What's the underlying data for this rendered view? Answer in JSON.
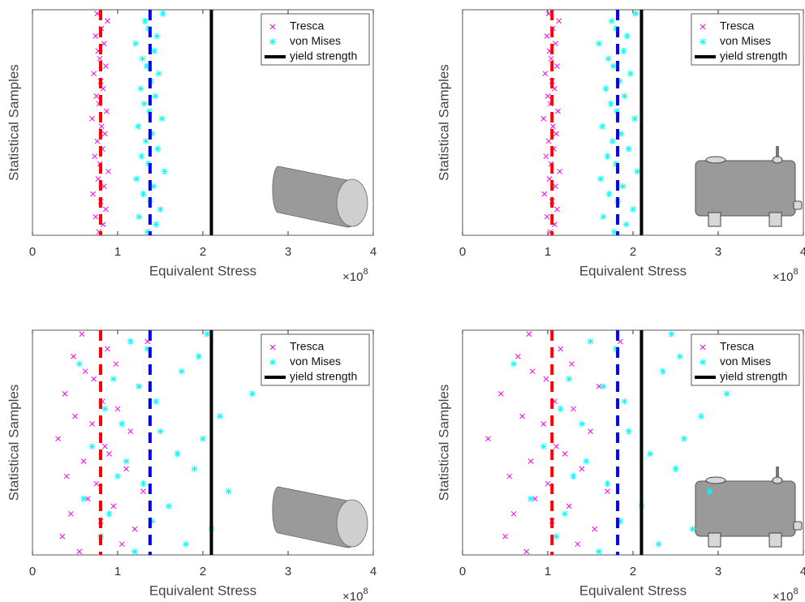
{
  "chart_data": [
    {
      "type": "scatter",
      "xlabel": "Equivalent Stress",
      "ylabel": "Statistical Samples",
      "x_multiplier": {
        "base": "×10",
        "exponent": "8"
      },
      "xlim": [
        0,
        4
      ],
      "xticks": [
        0,
        1,
        2,
        3,
        4
      ],
      "ylim": [
        0,
        1000
      ],
      "legend": "upper right",
      "series": [
        {
          "name": "Tresca",
          "color": "#ff00ff",
          "marker": "x",
          "x": [
            0.78,
            0.83,
            0.74,
            0.86,
            0.8,
            0.71,
            0.84,
            0.77,
            0.89,
            0.79,
            0.73,
            0.82,
            0.76,
            0.85,
            0.81,
            0.7,
            0.87,
            0.78,
            0.75,
            0.83,
            0.8,
            0.72,
            0.86,
            0.79,
            0.77,
            0.84,
            0.74,
            0.81,
            0.88,
            0.76
          ],
          "y": [
            15,
            48,
            82,
            115,
            150,
            183,
            217,
            250,
            283,
            317,
            350,
            383,
            417,
            450,
            483,
            517,
            550,
            583,
            617,
            650,
            683,
            717,
            750,
            783,
            817,
            850,
            883,
            917,
            950,
            983
          ]
        },
        {
          "name": "von Mises",
          "color": "#00ffff",
          "marker": "*",
          "x": [
            1.35,
            1.45,
            1.25,
            1.5,
            1.38,
            1.3,
            1.42,
            1.22,
            1.55,
            1.36,
            1.28,
            1.47,
            1.33,
            1.4,
            1.24,
            1.52,
            1.37,
            1.31,
            1.44,
            1.27,
            1.39,
            1.48,
            1.34,
            1.29,
            1.43,
            1.21,
            1.46,
            1.36,
            1.32,
            1.53
          ],
          "y": [
            15,
            48,
            82,
            115,
            150,
            183,
            217,
            250,
            283,
            317,
            350,
            383,
            417,
            450,
            483,
            517,
            550,
            583,
            617,
            650,
            683,
            717,
            750,
            783,
            817,
            850,
            883,
            917,
            950,
            983
          ]
        },
        {
          "name": "yield strength",
          "color": "#000000",
          "marker": "line",
          "value": 2.1
        }
      ],
      "mean_lines": [
        {
          "value": 0.8,
          "color": "#ff0000"
        },
        {
          "value": 1.38,
          "color": "#0000ff"
        }
      ],
      "icon": "cylinder"
    },
    {
      "type": "scatter",
      "xlabel": "Equivalent Stress",
      "ylabel": "Statistical Samples",
      "x_multiplier": {
        "base": "×10",
        "exponent": "8"
      },
      "xlim": [
        0,
        4
      ],
      "xticks": [
        0,
        1,
        2,
        3,
        4
      ],
      "ylim": [
        0,
        1000
      ],
      "legend": "upper right",
      "series": [
        {
          "name": "Tresca",
          "color": "#ff00ff",
          "marker": "x",
          "x": [
            1.03,
            1.08,
            0.99,
            1.11,
            1.05,
            0.96,
            1.09,
            1.02,
            1.14,
            1.04,
            0.98,
            1.07,
            1.01,
            1.1,
            1.06,
            0.95,
            1.12,
            1.03,
            1.0,
            1.08,
            1.05,
            0.97,
            1.11,
            1.04,
            1.02,
            1.09,
            0.99,
            1.06,
            1.13,
            1.01
          ],
          "y": [
            15,
            48,
            82,
            115,
            150,
            183,
            217,
            250,
            283,
            317,
            350,
            383,
            417,
            450,
            483,
            517,
            550,
            583,
            617,
            650,
            683,
            717,
            750,
            783,
            817,
            850,
            883,
            917,
            950,
            983
          ]
        },
        {
          "name": "von Mises",
          "color": "#00ffff",
          "marker": "*",
          "x": [
            1.78,
            1.92,
            1.65,
            2.0,
            1.82,
            1.72,
            1.88,
            1.62,
            2.05,
            1.8,
            1.7,
            1.95,
            1.76,
            1.86,
            1.64,
            2.02,
            1.81,
            1.74,
            1.9,
            1.68,
            1.84,
            1.97,
            1.77,
            1.71,
            1.89,
            1.6,
            1.93,
            1.8,
            1.75,
            2.03
          ],
          "y": [
            15,
            48,
            82,
            115,
            150,
            183,
            217,
            250,
            283,
            317,
            350,
            383,
            417,
            450,
            483,
            517,
            550,
            583,
            617,
            650,
            683,
            717,
            750,
            783,
            817,
            850,
            883,
            917,
            950,
            983
          ]
        },
        {
          "name": "yield strength",
          "color": "#000000",
          "marker": "line",
          "value": 2.1
        }
      ],
      "mean_lines": [
        {
          "value": 1.05,
          "color": "#ff0000"
        },
        {
          "value": 1.82,
          "color": "#0000ff"
        }
      ],
      "icon": "tank"
    },
    {
      "type": "scatter",
      "xlabel": "Equivalent Stress",
      "ylabel": "Statistical Samples",
      "x_multiplier": {
        "base": "×10",
        "exponent": "8"
      },
      "xlim": [
        0,
        4
      ],
      "xticks": [
        0,
        1,
        2,
        3,
        4
      ],
      "ylim": [
        0,
        1000
      ],
      "legend": "upper right",
      "series": [
        {
          "name": "Tresca",
          "color": "#ff00ff",
          "marker": "x",
          "x": [
            0.55,
            1.05,
            0.35,
            1.2,
            0.8,
            0.45,
            0.95,
            0.65,
            1.3,
            0.75,
            0.4,
            1.1,
            0.6,
            0.9,
            0.85,
            0.3,
            1.15,
            0.7,
            0.5,
            1.0,
            0.82,
            0.38,
            1.25,
            0.72,
            0.62,
            0.98,
            0.48,
            0.88,
            1.35,
            0.58
          ],
          "y": [
            15,
            48,
            82,
            115,
            150,
            183,
            217,
            250,
            283,
            317,
            350,
            383,
            417,
            450,
            483,
            517,
            550,
            583,
            617,
            650,
            683,
            717,
            750,
            783,
            817,
            850,
            883,
            917,
            950,
            983
          ]
        },
        {
          "name": "von Mises",
          "color": "#00ffff",
          "marker": "*",
          "x": [
            1.2,
            1.8,
            0.8,
            2.1,
            1.4,
            0.9,
            1.6,
            0.6,
            2.3,
            1.3,
            1.0,
            1.9,
            1.1,
            1.7,
            0.7,
            2.0,
            1.5,
            1.05,
            2.2,
            0.85,
            1.45,
            2.58,
            1.25,
            0.95,
            1.75,
            0.55,
            1.95,
            1.35,
            1.15,
            2.05
          ],
          "y": [
            15,
            48,
            82,
            115,
            150,
            183,
            217,
            250,
            283,
            317,
            350,
            383,
            417,
            450,
            483,
            517,
            550,
            583,
            617,
            650,
            683,
            717,
            750,
            783,
            817,
            850,
            883,
            917,
            950,
            983
          ]
        },
        {
          "name": "yield strength",
          "color": "#000000",
          "marker": "line",
          "value": 2.1
        }
      ],
      "mean_lines": [
        {
          "value": 0.8,
          "color": "#ff0000"
        },
        {
          "value": 1.38,
          "color": "#0000ff"
        }
      ],
      "icon": "cylinder"
    },
    {
      "type": "scatter",
      "xlabel": "Equivalent Stress",
      "ylabel": "Statistical Samples",
      "x_multiplier": {
        "base": "×10",
        "exponent": "8"
      },
      "xlim": [
        0,
        4
      ],
      "xticks": [
        0,
        1,
        2,
        3,
        4
      ],
      "ylim": [
        0,
        1000
      ],
      "legend": "upper right",
      "series": [
        {
          "name": "Tresca",
          "color": "#ff00ff",
          "marker": "x",
          "x": [
            0.75,
            1.35,
            0.5,
            1.55,
            1.05,
            0.6,
            1.25,
            0.85,
            1.7,
            1.0,
            0.55,
            1.4,
            0.8,
            1.2,
            1.1,
            0.3,
            1.5,
            0.95,
            0.7,
            1.3,
            1.08,
            0.45,
            1.6,
            0.98,
            0.82,
            1.28,
            0.65,
            1.15,
            1.85,
            0.78
          ],
          "y": [
            15,
            48,
            82,
            115,
            150,
            183,
            217,
            250,
            283,
            317,
            350,
            383,
            417,
            450,
            483,
            517,
            550,
            583,
            617,
            650,
            683,
            717,
            750,
            783,
            817,
            850,
            883,
            917,
            950,
            983
          ]
        },
        {
          "name": "von Mises",
          "color": "#00ffff",
          "marker": "*",
          "x": [
            1.6,
            2.3,
            1.1,
            2.7,
            1.85,
            1.2,
            2.1,
            0.8,
            2.9,
            1.7,
            1.3,
            2.5,
            1.45,
            2.2,
            0.95,
            2.6,
            1.95,
            1.4,
            2.8,
            1.15,
            1.9,
            3.1,
            1.65,
            1.25,
            2.35,
            0.6,
            2.55,
            1.8,
            1.5,
            2.45
          ],
          "y": [
            15,
            48,
            82,
            115,
            150,
            183,
            217,
            250,
            283,
            317,
            350,
            383,
            417,
            450,
            483,
            517,
            550,
            583,
            617,
            650,
            683,
            717,
            750,
            783,
            817,
            850,
            883,
            917,
            950,
            983
          ]
        },
        {
          "name": "yield strength",
          "color": "#000000",
          "marker": "line",
          "value": 2.1
        }
      ],
      "mean_lines": [
        {
          "value": 1.05,
          "color": "#ff0000"
        },
        {
          "value": 1.82,
          "color": "#0000ff"
        }
      ],
      "icon": "tank"
    }
  ]
}
